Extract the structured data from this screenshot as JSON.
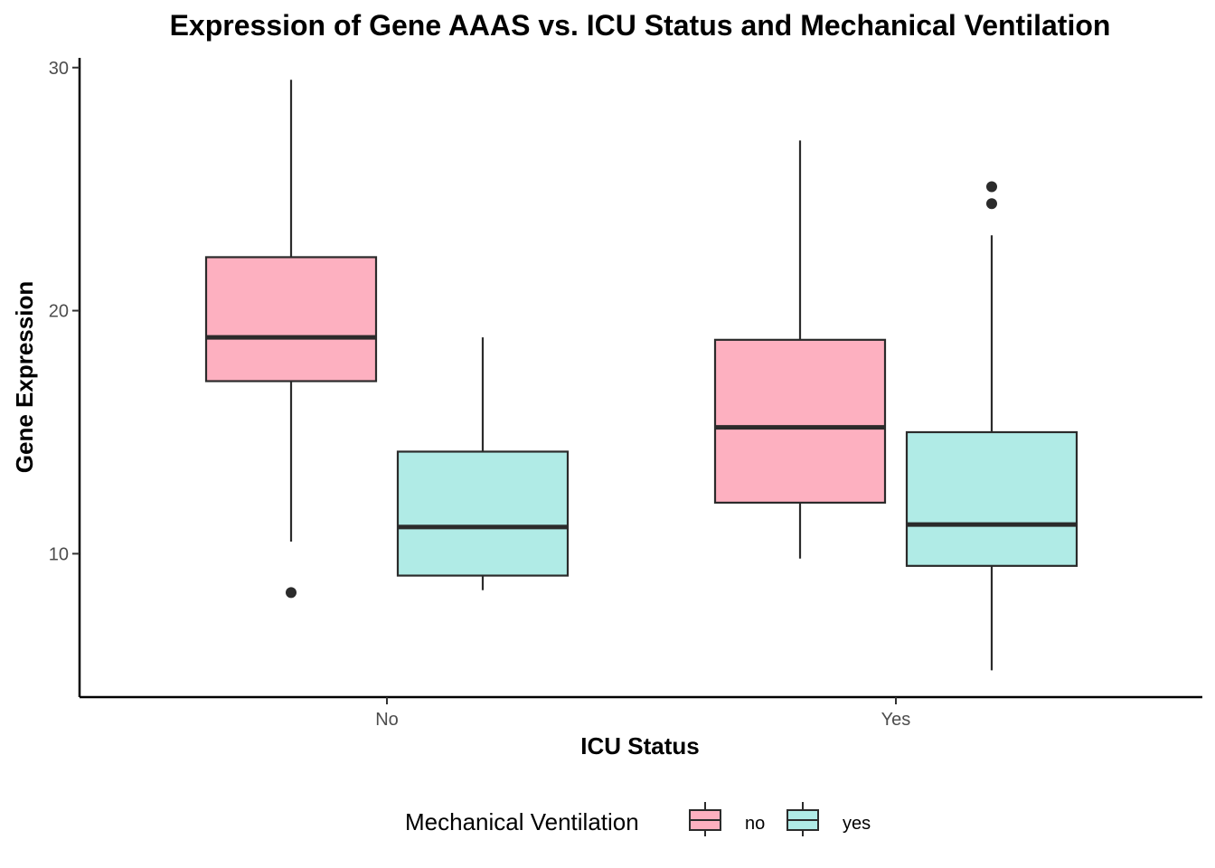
{
  "chart_data": {
    "type": "boxplot",
    "title": "Expression of Gene AAAS vs. ICU Status and Mechanical Ventilation",
    "xlabel": "ICU Status",
    "ylabel": "Gene Expression",
    "ylim": [
      4.1,
      30.4
    ],
    "y_ticks": [
      10,
      20,
      30
    ],
    "y_tick_labels": [
      "10",
      "20",
      "30"
    ],
    "categories": [
      "No",
      "Yes"
    ],
    "grid": false,
    "legend": {
      "title": "Mechanical Ventilation",
      "position": "bottom",
      "entries": [
        {
          "label": "no",
          "color": "#fdb0c0"
        },
        {
          "label": "yes",
          "color": "#b0ebe6"
        }
      ]
    },
    "series": [
      {
        "name": "no",
        "color": "#fdb0c0",
        "boxes": [
          {
            "category": "No",
            "whisker_low": 10.5,
            "q1": 17.1,
            "median": 18.9,
            "q3": 22.2,
            "whisker_high": 29.5,
            "outliers": [
              8.4
            ]
          },
          {
            "category": "Yes",
            "whisker_low": 9.8,
            "q1": 12.1,
            "median": 15.2,
            "q3": 18.8,
            "whisker_high": 27.0,
            "outliers": []
          }
        ]
      },
      {
        "name": "yes",
        "color": "#b0ebe6",
        "boxes": [
          {
            "category": "No",
            "whisker_low": 8.5,
            "q1": 9.1,
            "median": 11.1,
            "q3": 14.2,
            "whisker_high": 18.9,
            "outliers": []
          },
          {
            "category": "Yes",
            "whisker_low": 5.2,
            "q1": 9.5,
            "median": 11.2,
            "q3": 15.0,
            "whisker_high": 23.1,
            "outliers": [
              24.4,
              25.1
            ]
          }
        ]
      }
    ],
    "colors": {
      "box_stroke": "#2b2b2b",
      "axis": "#000000"
    }
  }
}
